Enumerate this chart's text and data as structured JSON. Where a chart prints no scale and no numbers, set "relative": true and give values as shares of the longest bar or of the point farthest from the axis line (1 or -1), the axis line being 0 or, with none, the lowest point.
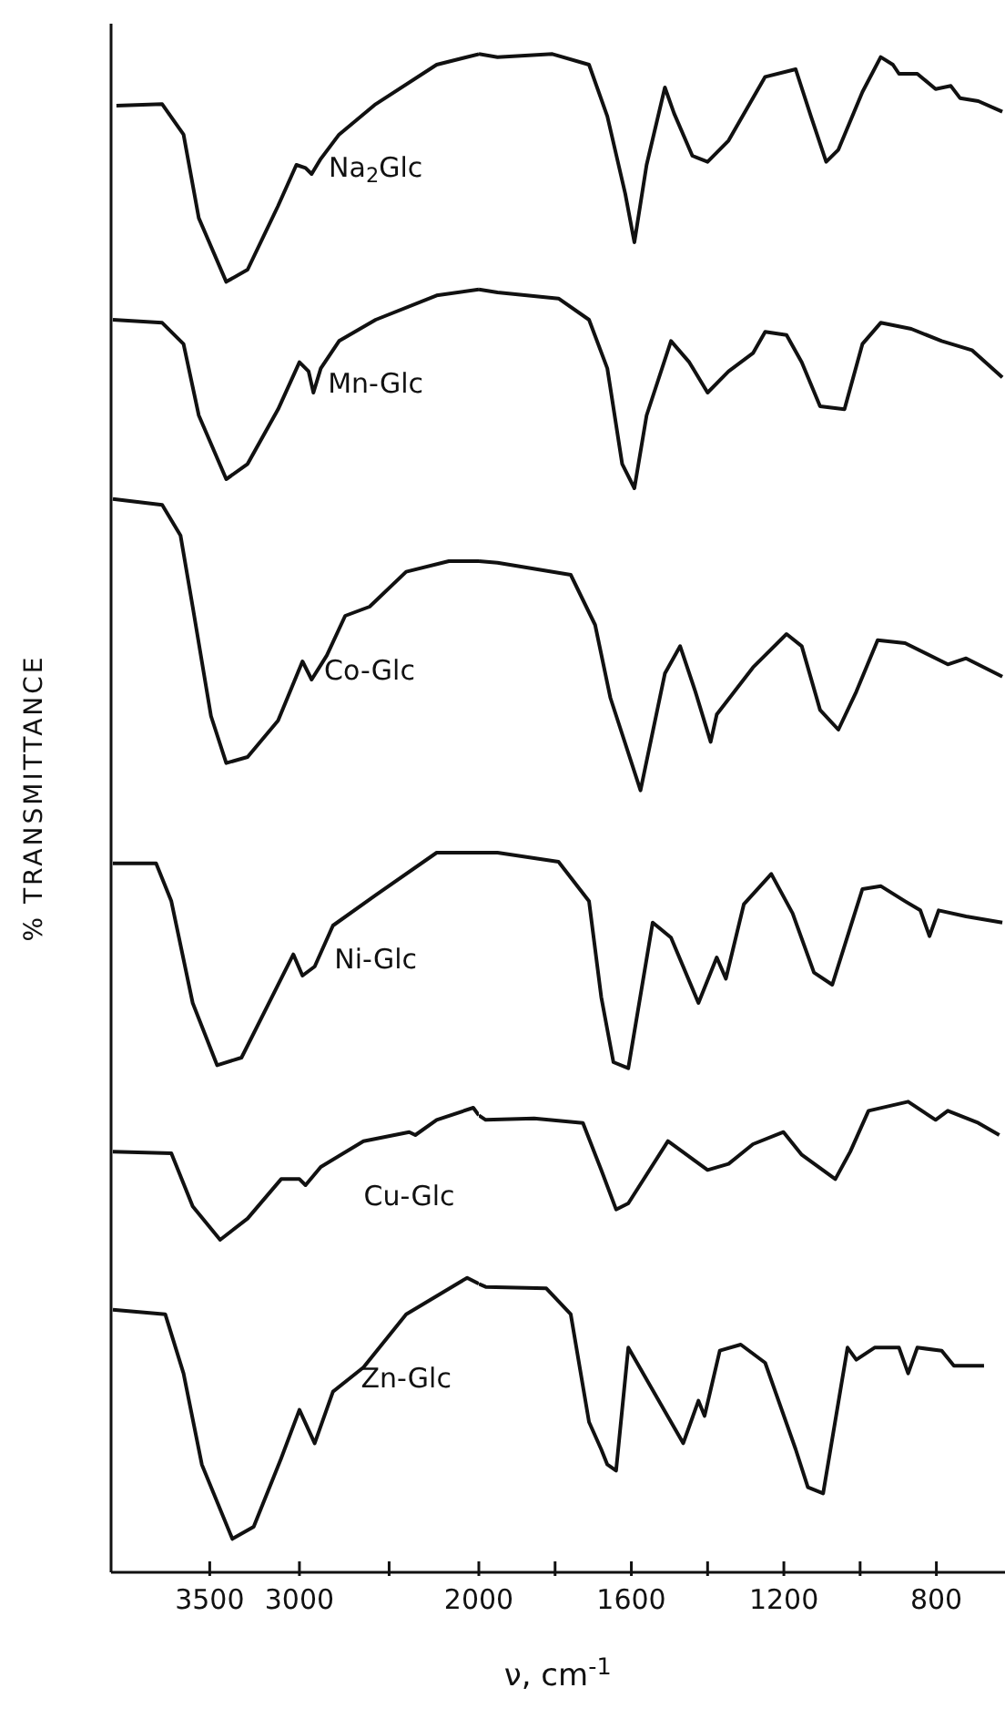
{
  "chart_data": [
    {
      "type": "line",
      "relative": true,
      "ylabel": "% TRANSMITTANCE",
      "xlim": [
        4050,
        2000
      ],
      "xticks": [
        3500,
        3000,
        {
          "value": 2500,
          "label": null
        }
      ],
      "legend": false,
      "grid": false,
      "marker": "none",
      "line_style": "solid",
      "series": [
        {
          "name": "Na$_{2}$Glc",
          "color": "#111111",
          "x": [
            4020,
            3765,
            3646,
            3561,
            3408,
            3289,
            3119,
            3017,
            2966,
            2932,
            2881,
            2779,
            2575,
            2235,
            2000
          ],
          "values": [
            0.966,
            0.967,
            0.947,
            0.892,
            0.85,
            0.858,
            0.9,
            0.927,
            0.925,
            0.921,
            0.931,
            0.947,
            0.967,
            0.993,
            1
          ]
        },
        {
          "name": "Mn-Glc",
          "color": "#111111",
          "x": [
            4040,
            3765,
            3646,
            3561,
            3408,
            3289,
            3119,
            3000,
            2949,
            2922,
            2881,
            2779,
            2575,
            2235,
            2000
          ],
          "values": [
            0.825,
            0.823,
            0.809,
            0.762,
            0.72,
            0.73,
            0.766,
            0.797,
            0.791,
            0.777,
            0.793,
            0.811,
            0.825,
            0.841,
            0.845
          ]
        },
        {
          "name": "Co-Glc",
          "color": "#111111",
          "x": [
            4040,
            3765,
            3663,
            3595,
            3493,
            3408,
            3289,
            3119,
            2983,
            2932,
            2847,
            2745,
            2609,
            2405,
            2167,
            2000
          ],
          "values": [
            0.707,
            0.703,
            0.683,
            0.636,
            0.564,
            0.533,
            0.537,
            0.561,
            0.6,
            0.588,
            0.604,
            0.63,
            0.636,
            0.659,
            0.666,
            0.666
          ]
        },
        {
          "name": "Ni-Glc",
          "color": "#111111",
          "x": [
            4040,
            3799,
            3714,
            3595,
            3459,
            3323,
            3153,
            3034,
            2983,
            2915,
            2813,
            2575,
            2235,
            2000
          ],
          "values": [
            0.467,
            0.467,
            0.442,
            0.375,
            0.334,
            0.339,
            0.379,
            0.407,
            0.393,
            0.399,
            0.426,
            0.446,
            0.474,
            0.474
          ]
        },
        {
          "name": "Cu-Glc",
          "color": "#111111",
          "x": [
            4040,
            3714,
            3595,
            3442,
            3289,
            3102,
            3000,
            2966,
            2881,
            2643,
            2388,
            2354,
            2235,
            2031,
            2000
          ],
          "values": [
            0.277,
            0.276,
            0.241,
            0.219,
            0.233,
            0.259,
            0.259,
            0.255,
            0.267,
            0.284,
            0.29,
            0.288,
            0.298,
            0.306,
            0.301
          ]
        },
        {
          "name": "Zn-Glc",
          "color": "#111111",
          "x": [
            4040,
            3748,
            3646,
            3544,
            3374,
            3255,
            3102,
            3000,
            2915,
            2813,
            2643,
            2405,
            2065,
            2000
          ],
          "values": [
            0.173,
            0.17,
            0.131,
            0.071,
            0.022,
            0.03,
            0.075,
            0.107,
            0.085,
            0.119,
            0.135,
            0.17,
            0.194,
            0.19
          ]
        }
      ]
    },
    {
      "type": "line",
      "relative": true,
      "xlabel": "ν, cm$^{-1}$",
      "xlim": [
        2000,
        620
      ],
      "xticks": [
        2000,
        {
          "value": 1800,
          "label": null
        },
        1600,
        {
          "value": 1400,
          "label": null
        },
        1200,
        {
          "value": 1000,
          "label": null
        },
        800
      ],
      "legend": false,
      "grid": false,
      "marker": "none",
      "line_style": "solid",
      "series": [
        {
          "color": "#111111",
          "x": [
            2000,
            1951,
            1807,
            1711,
            1663,
            1616,
            1592,
            1560,
            1512,
            1488,
            1440,
            1400,
            1345,
            1249,
            1169,
            1129,
            1089,
            1057,
            994,
            946,
            914,
            898,
            850,
            802,
            762,
            738,
            690,
            627
          ],
          "values": [
            1,
            0.998,
            1,
            0.993,
            0.959,
            0.908,
            0.876,
            0.927,
            0.978,
            0.961,
            0.933,
            0.929,
            0.943,
            0.985,
            0.99,
            0.959,
            0.929,
            0.937,
            0.975,
            0.998,
            0.993,
            0.987,
            0.987,
            0.977,
            0.979,
            0.971,
            0.969,
            0.962
          ]
        },
        {
          "color": "#111111",
          "x": [
            2000,
            1951,
            1791,
            1711,
            1663,
            1624,
            1592,
            1560,
            1496,
            1448,
            1400,
            1345,
            1281,
            1249,
            1193,
            1153,
            1105,
            1041,
            994,
            946,
            866,
            786,
            707,
            627
          ],
          "values": [
            0.845,
            0.843,
            0.839,
            0.825,
            0.793,
            0.73,
            0.714,
            0.762,
            0.811,
            0.797,
            0.777,
            0.791,
            0.803,
            0.817,
            0.815,
            0.797,
            0.768,
            0.766,
            0.809,
            0.823,
            0.819,
            0.811,
            0.805,
            0.787
          ]
        },
        {
          "color": "#111111",
          "x": [
            2000,
            1951,
            1759,
            1695,
            1655,
            1576,
            1512,
            1472,
            1432,
            1392,
            1376,
            1281,
            1193,
            1153,
            1105,
            1057,
            1010,
            954,
            882,
            770,
            722,
            627
          ],
          "values": [
            0.666,
            0.665,
            0.657,
            0.624,
            0.576,
            0.515,
            0.592,
            0.61,
            0.58,
            0.547,
            0.565,
            0.596,
            0.618,
            0.61,
            0.568,
            0.555,
            0.58,
            0.614,
            0.612,
            0.598,
            0.602,
            0.59
          ]
        },
        {
          "color": "#111111",
          "x": [
            2000,
            1951,
            1791,
            1711,
            1679,
            1647,
            1608,
            1544,
            1496,
            1424,
            1376,
            1352,
            1305,
            1233,
            1177,
            1121,
            1073,
            994,
            946,
            882,
            842,
            818,
            794,
            722,
            627
          ],
          "values": [
            0.474,
            0.474,
            0.468,
            0.442,
            0.379,
            0.336,
            0.332,
            0.428,
            0.418,
            0.375,
            0.405,
            0.391,
            0.44,
            0.46,
            0.434,
            0.395,
            0.387,
            0.45,
            0.452,
            0.442,
            0.436,
            0.419,
            0.436,
            0.432,
            0.428
          ]
        },
        {
          "color": "#111111",
          "x": [
            2000,
            1982,
            1855,
            1727,
            1679,
            1640,
            1608,
            1504,
            1400,
            1345,
            1281,
            1201,
            1153,
            1065,
            1026,
            978,
            874,
            802,
            770,
            690,
            635
          ],
          "values": [
            0.301,
            0.298,
            0.299,
            0.296,
            0.265,
            0.239,
            0.243,
            0.284,
            0.265,
            0.269,
            0.282,
            0.29,
            0.275,
            0.259,
            0.277,
            0.304,
            0.31,
            0.298,
            0.304,
            0.296,
            0.288
          ]
        },
        {
          "color": "#111111",
          "x": [
            2000,
            1982,
            1823,
            1759,
            1711,
            1679,
            1663,
            1640,
            1608,
            1464,
            1424,
            1408,
            1368,
            1313,
            1249,
            1169,
            1137,
            1097,
            1033,
            1010,
            962,
            898,
            874,
            850,
            786,
            754,
            675
          ],
          "values": [
            0.19,
            0.188,
            0.187,
            0.17,
            0.099,
            0.081,
            0.071,
            0.067,
            0.148,
            0.085,
            0.113,
            0.103,
            0.146,
            0.15,
            0.138,
            0.081,
            0.056,
            0.052,
            0.148,
            0.14,
            0.148,
            0.148,
            0.131,
            0.148,
            0.146,
            0.136,
            0.136
          ]
        }
      ]
    }
  ]
}
